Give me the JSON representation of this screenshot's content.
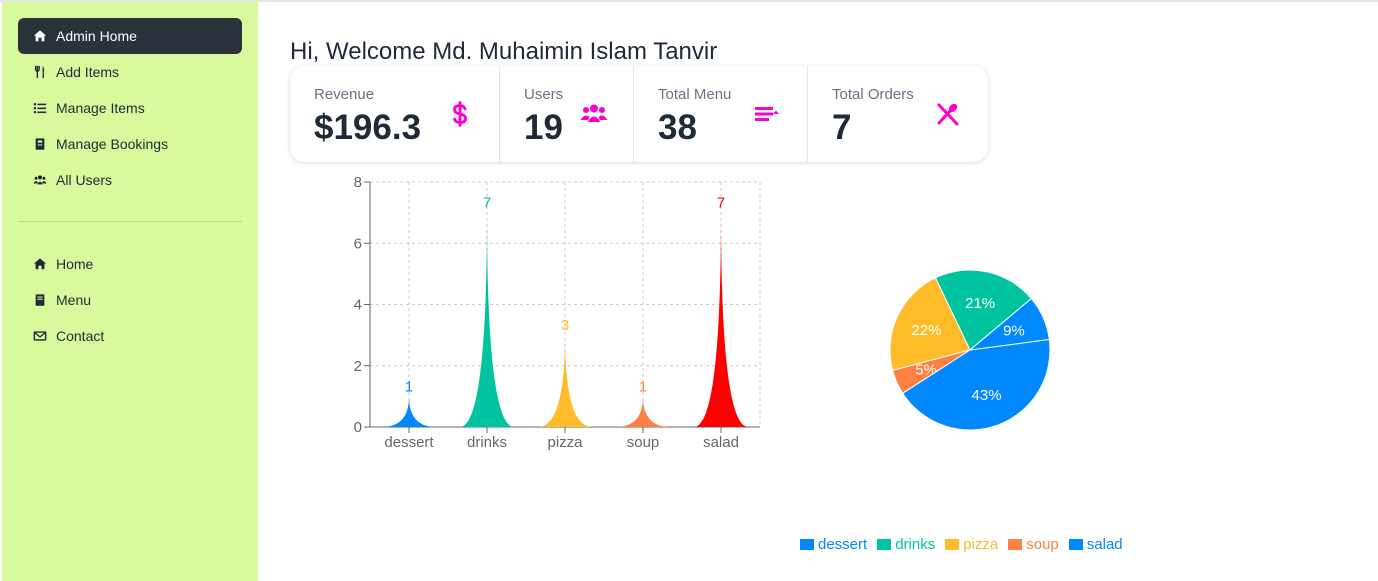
{
  "sidebar": {
    "items": [
      {
        "label": "Admin Home",
        "icon": "home-icon"
      },
      {
        "label": "Add Items",
        "icon": "utensils-icon"
      },
      {
        "label": "Manage Items",
        "icon": "list-icon"
      },
      {
        "label": "Manage Bookings",
        "icon": "book-icon"
      },
      {
        "label": "All Users",
        "icon": "users-icon"
      },
      {
        "label": "Home",
        "icon": "home-icon"
      },
      {
        "label": "Menu",
        "icon": "menu-book-icon"
      },
      {
        "label": "Contact",
        "icon": "envelope-icon"
      }
    ]
  },
  "welcome": {
    "text": "Hi, Welcome Md. Muhaimin Islam Tanvir"
  },
  "stats": [
    {
      "title": "Revenue",
      "value": "$196.3",
      "icon": "dollar-icon"
    },
    {
      "title": "Users",
      "value": "19",
      "icon": "users-icon"
    },
    {
      "title": "Total Menu",
      "value": "38",
      "icon": "menu-list-icon"
    },
    {
      "title": "Total Orders",
      "value": "7",
      "icon": "fork-spoon-icon"
    }
  ],
  "colors": {
    "accent": "#ff00cc",
    "sidebar_bg": "#d9f99d",
    "active_item": "#2a323c",
    "series": [
      "#0088fe",
      "#00c49f",
      "#ffbb28",
      "#ff8042",
      "#ff0000"
    ],
    "pie": [
      "#0088fe",
      "#00c49f",
      "#ffbb28",
      "#ff8042",
      "#0088fe"
    ]
  },
  "chart_data": [
    {
      "type": "bar",
      "bar_shape": "triangle",
      "categories": [
        "dessert",
        "drinks",
        "pizza",
        "soup",
        "salad"
      ],
      "values": [
        1,
        7,
        3,
        1,
        7
      ],
      "ylim": [
        0,
        8
      ],
      "yticks": [
        "0",
        "2",
        "4",
        "6",
        "8"
      ],
      "grid": true,
      "title": "",
      "xlabel": "",
      "ylabel": ""
    },
    {
      "type": "pie",
      "labels": [
        "dessert",
        "drinks",
        "pizza",
        "soup",
        "salad"
      ],
      "slices": [
        {
          "name": "drinks",
          "percent": 21,
          "label": "21%"
        },
        {
          "name": "pizza",
          "percent": 22,
          "label": "22%"
        },
        {
          "name": "soup",
          "percent": 5,
          "label": "5%"
        },
        {
          "name": "salad",
          "percent": 43,
          "label": "43%"
        },
        {
          "name": "dessert",
          "percent": 9,
          "label": "9%"
        }
      ],
      "legend": "bottom",
      "legend_entries": [
        "dessert",
        "drinks",
        "pizza",
        "soup",
        "salad"
      ]
    }
  ]
}
